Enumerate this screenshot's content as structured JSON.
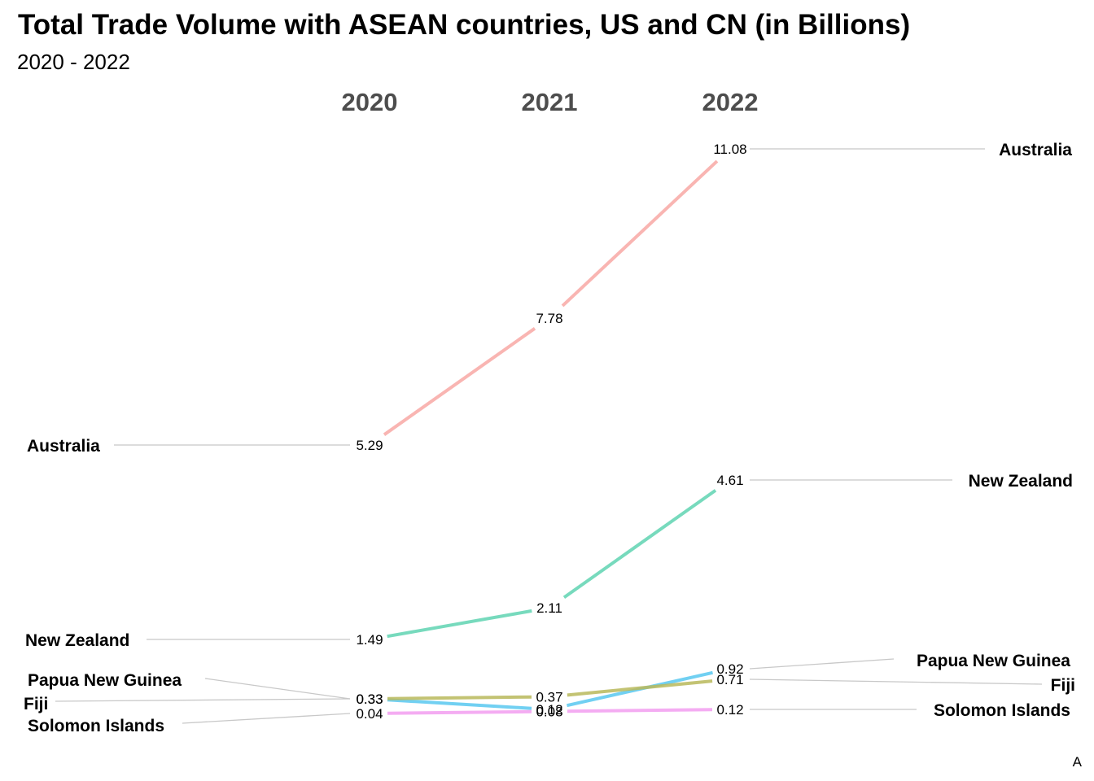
{
  "chart_data": {
    "type": "line",
    "title": "Total Trade Volume with ASEAN countries, US and CN (in Billions)",
    "subtitle": "2020 - 2022",
    "caption": "A",
    "x": [
      "2020",
      "2021",
      "2022"
    ],
    "xlabel": "",
    "ylabel": "",
    "grid": false,
    "legend": "none",
    "series": [
      {
        "name": "Australia",
        "values": [
          5.29,
          7.78,
          11.08
        ],
        "color": "#f8a8a4"
      },
      {
        "name": "New Zealand",
        "values": [
          1.49,
          2.11,
          4.61
        ],
        "color": "#5fd3b2"
      },
      {
        "name": "Papua New Guinea",
        "values": [
          0.33,
          0.12,
          0.92
        ],
        "color": "#58c8f0"
      },
      {
        "name": "Fiji",
        "values": [
          0.33,
          0.37,
          0.71
        ],
        "color": "#b8b85a"
      },
      {
        "name": "Solomon Islands",
        "values": [
          0.04,
          0.08,
          0.12
        ],
        "color": "#f29ef0"
      }
    ]
  }
}
